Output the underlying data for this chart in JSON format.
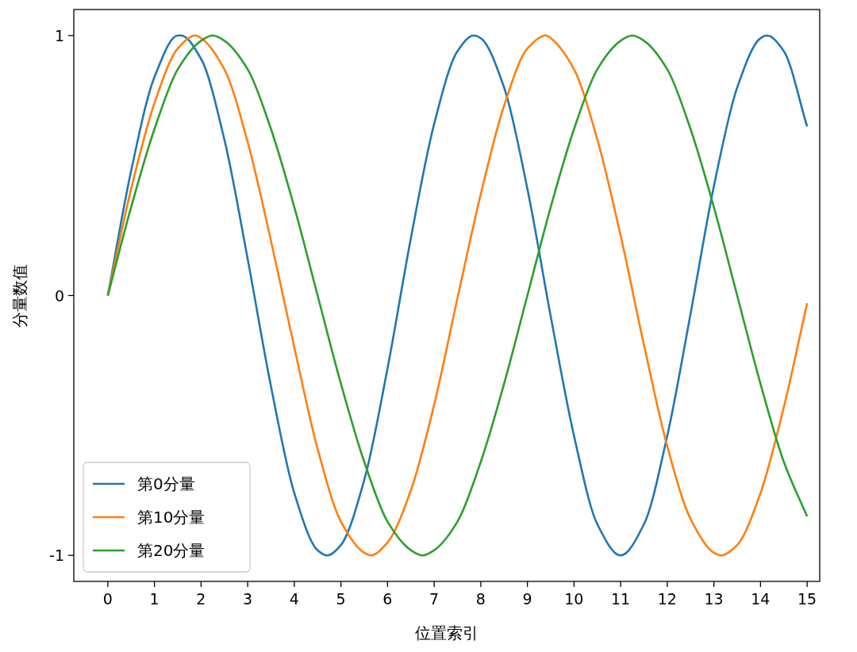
{
  "chart_data": {
    "type": "line",
    "xlabel": "位置索引",
    "ylabel": "分量数值",
    "xlim": [
      -0.73,
      15.27
    ],
    "ylim": [
      -1.1,
      1.1
    ],
    "xticks": [
      0,
      1,
      2,
      3,
      4,
      5,
      6,
      7,
      8,
      9,
      10,
      11,
      12,
      13,
      14,
      15
    ],
    "yticks": [
      -1,
      0,
      1
    ],
    "grid": false,
    "legend": "bottom left",
    "marker": "none",
    "line_style": "solid",
    "series": [
      {
        "name": "第0分量",
        "color": "#1f77b4",
        "x": [
          0,
          0.5,
          1,
          1.5,
          1.57,
          2,
          2.5,
          3,
          3.5,
          4,
          4.5,
          4.71,
          5,
          5.5,
          6,
          6.5,
          7,
          7.5,
          7.85,
          8,
          8.5,
          9,
          9.5,
          10,
          10.5,
          11,
          11.5,
          12,
          12.5,
          13,
          13.5,
          14,
          14.14,
          14.5,
          15
        ],
        "values": [
          0,
          0.48,
          0.84,
          1.0,
          1,
          0.91,
          0.6,
          0.14,
          -0.35,
          -0.76,
          -0.98,
          -1,
          -0.96,
          -0.71,
          -0.28,
          0.22,
          0.66,
          0.94,
          1,
          0.99,
          0.8,
          0.41,
          -0.08,
          -0.54,
          -0.88,
          -1,
          -0.88,
          -0.54,
          -0.07,
          0.42,
          0.8,
          0.99,
          1,
          0.94,
          0.65
        ]
      },
      {
        "name": "第10分量",
        "color": "#ff7f0e",
        "x": [
          0,
          0.5,
          1,
          1.5,
          1.88,
          2,
          2.5,
          3,
          3.5,
          4,
          4.5,
          5,
          5.5,
          5.64,
          6,
          6.5,
          7,
          7.5,
          8,
          8.5,
          9,
          9.4,
          9.5,
          10,
          10.5,
          11,
          11.5,
          12,
          12.5,
          13,
          13.15,
          13.5,
          14,
          14.5,
          15
        ],
        "values": [
          0,
          0.41,
          0.74,
          0.95,
          1,
          0.99,
          0.87,
          0.59,
          0.21,
          -0.2,
          -0.59,
          -0.87,
          -0.99,
          -1,
          -0.95,
          -0.75,
          -0.42,
          -0.01,
          0.39,
          0.73,
          0.95,
          1,
          0.99,
          0.87,
          0.6,
          0.23,
          -0.19,
          -0.58,
          -0.86,
          -0.99,
          -1,
          -0.96,
          -0.76,
          -0.43,
          -0.03
        ]
      },
      {
        "name": "第20分量",
        "color": "#2ca02c",
        "x": [
          0,
          0.5,
          1,
          1.5,
          2,
          2.25,
          2.5,
          3,
          3.5,
          4,
          4.5,
          5,
          5.5,
          6,
          6.5,
          6.75,
          7,
          7.5,
          8,
          8.5,
          9,
          9.5,
          10,
          10.5,
          11,
          11.25,
          11.5,
          12,
          12.5,
          13,
          13.5,
          14,
          14.5,
          15
        ],
        "values": [
          0,
          0.34,
          0.64,
          0.87,
          0.98,
          1,
          0.98,
          0.87,
          0.64,
          0.34,
          0,
          -0.34,
          -0.64,
          -0.87,
          -0.98,
          -1,
          -0.98,
          -0.87,
          -0.64,
          -0.34,
          0,
          0.34,
          0.64,
          0.87,
          0.98,
          1,
          0.98,
          0.87,
          0.64,
          0.34,
          0,
          -0.34,
          -0.64,
          -0.85
        ]
      }
    ]
  }
}
